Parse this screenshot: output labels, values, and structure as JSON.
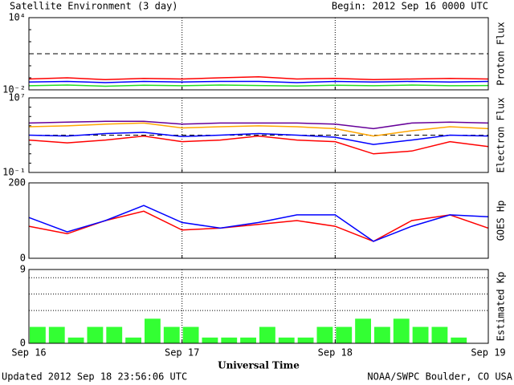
{
  "header": {
    "title": "Satellite Environment (3 day)",
    "begin": "Begin:  2012 Sep 16 0000 UTC",
    "updated": "Updated 2012 Sep 18 23:56:06 UTC",
    "credit": "NOAA/SWPC Boulder, CO USA"
  },
  "x_axis": {
    "label": "Universal Time",
    "xlim": [
      0,
      72
    ],
    "xticks": [
      {
        "value": 0,
        "label": "Sep 16"
      },
      {
        "value": 24,
        "label": "Sep 17"
      },
      {
        "value": 48,
        "label": "Sep 18"
      },
      {
        "value": 72,
        "label": "Sep 19"
      }
    ]
  },
  "chart_data": [
    {
      "type": "line",
      "y_label": "Proton Flux",
      "log": true,
      "ylim": [
        0.01,
        10000
      ],
      "yticks": [
        {
          "value": 10000,
          "label": "10⁴"
        },
        {
          "value": 0.01,
          "label": "10⁻²"
        }
      ],
      "threshold": 10,
      "x": [
        0,
        6,
        12,
        18,
        24,
        30,
        36,
        42,
        48,
        54,
        60,
        66,
        72
      ],
      "series": [
        {
          "color": "#ff0000",
          "values": [
            0.08,
            0.1,
            0.07,
            0.09,
            0.08,
            0.1,
            0.12,
            0.08,
            0.09,
            0.07,
            0.08,
            0.09,
            0.08
          ]
        },
        {
          "color": "#0000ff",
          "values": [
            0.045,
            0.05,
            0.04,
            0.05,
            0.045,
            0.05,
            0.05,
            0.04,
            0.05,
            0.045,
            0.05,
            0.045,
            0.05
          ]
        },
        {
          "color": "#22dd22",
          "values": [
            0.022,
            0.025,
            0.02,
            0.024,
            0.022,
            0.025,
            0.023,
            0.021,
            0.024,
            0.022,
            0.025,
            0.022,
            0.023
          ]
        }
      ]
    },
    {
      "type": "line",
      "y_label": "Electron Flux",
      "log": true,
      "ylim": [
        0.1,
        10000000
      ],
      "yticks": [
        {
          "value": 10000000,
          "label": "10⁷"
        },
        {
          "value": 0.1,
          "label": "10⁻¹"
        }
      ],
      "threshold": 1000,
      "x": [
        0,
        6,
        12,
        18,
        24,
        30,
        36,
        42,
        48,
        54,
        60,
        66,
        72
      ],
      "series": [
        {
          "color": "#660099",
          "values": [
            20000,
            25000,
            30000,
            30000,
            15000,
            20000,
            20000,
            20000,
            15000,
            5000,
            20000,
            25000,
            20000
          ]
        },
        {
          "color": "#ffa500",
          "values": [
            8000,
            10000,
            15000,
            20000,
            6000,
            8000,
            10000,
            8000,
            5000,
            800,
            3000,
            8000,
            5000
          ]
        },
        {
          "color": "#0000ff",
          "values": [
            1000,
            800,
            1500,
            2000,
            700,
            1000,
            1500,
            1000,
            600,
            100,
            300,
            1000,
            800
          ]
        },
        {
          "color": "#ff0000",
          "values": [
            300,
            150,
            300,
            800,
            200,
            300,
            800,
            300,
            200,
            10,
            20,
            200,
            60
          ]
        }
      ]
    },
    {
      "type": "line",
      "y_label": "GOES Hp",
      "log": false,
      "ylim": [
        0,
        200
      ],
      "yticks": [
        200,
        0
      ],
      "x": [
        0,
        6,
        12,
        18,
        24,
        30,
        36,
        42,
        48,
        54,
        60,
        66,
        72
      ],
      "series": [
        {
          "color": "#ff0000",
          "values": [
            85,
            65,
            100,
            125,
            75,
            80,
            90,
            100,
            85,
            45,
            100,
            115,
            80
          ]
        },
        {
          "color": "#0000ff",
          "values": [
            108,
            70,
            100,
            140,
            95,
            80,
            95,
            115,
            115,
            45,
            85,
            115,
            110
          ]
        }
      ]
    },
    {
      "type": "bar",
      "y_label": "Estimated Kp",
      "log": false,
      "ylim": [
        0,
        9
      ],
      "yticks": [
        9,
        0
      ],
      "ref_lines": [
        4,
        6,
        8
      ],
      "color": "#33ff33",
      "bin_hours": 3,
      "values": [
        2,
        2,
        0.7,
        2,
        2,
        0.7,
        3,
        2,
        2,
        0.7,
        0.7,
        0.7,
        2,
        0.7,
        0.7,
        2,
        2,
        3,
        2,
        3,
        2,
        2,
        0.7,
        null
      ]
    }
  ]
}
